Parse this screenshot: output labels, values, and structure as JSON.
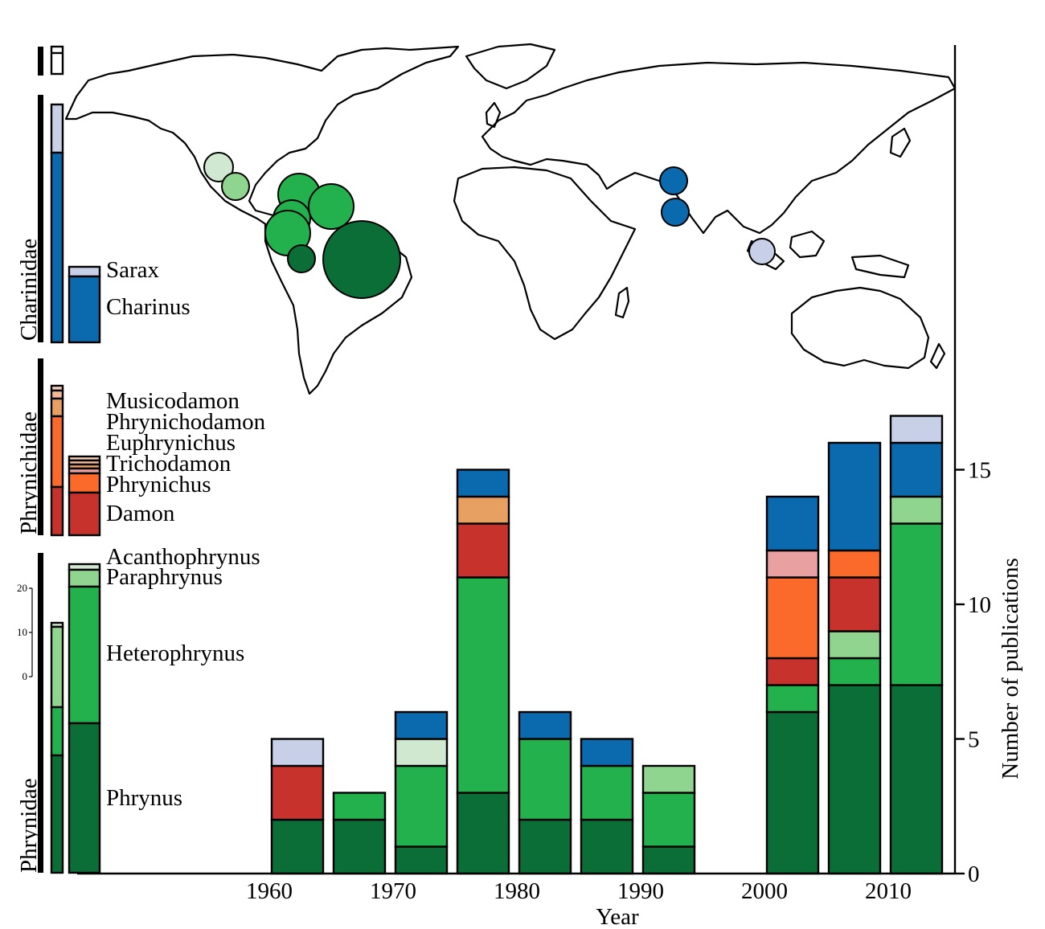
{
  "colors": {
    "Sarax": "#c8d0e8",
    "Charinus": "#0a6aad",
    "Musicodamon": "#f7cfb8",
    "Phrynichodamon": "#f3b895",
    "Euphrynichus": "#e8a062",
    "Trichodamon": "#e8a0a0",
    "Phrynichus": "#fb6a2a",
    "Damon": "#c8322c",
    "Acanthophrynus": "#cfe8cf",
    "Paraphrynus": "#8fd48f",
    "Heterophrynus": "#22b14c",
    "Phrynus": "#0b6e37"
  },
  "families": [
    {
      "name": "Charinidae",
      "genera": [
        "Sarax",
        "Charinus"
      ]
    },
    {
      "name": "Phrynichidae",
      "genera": [
        "Musicodamon",
        "Phrynichodamon",
        "Euphrynichus",
        "Trichodamon",
        "Phrynichus",
        "Damon"
      ]
    },
    {
      "name": "Phrynidae",
      "genera": [
        "Acanthophrynus",
        "Paraphrynus",
        "Heterophrynus",
        "Phrynus"
      ]
    }
  ],
  "legend_scale_ticks": [
    "20",
    "10",
    "0"
  ],
  "chart_data": {
    "type": "bar",
    "stacked": true,
    "xlabel": "Year",
    "ylabel": "Number of publications",
    "ylim": [
      0,
      18.5
    ],
    "yticks": [
      0,
      5,
      10,
      15
    ],
    "xticks": [
      "1960",
      "1970",
      "1980",
      "1990",
      "2000",
      "2010"
    ],
    "bins": [
      {
        "start": 1960,
        "Phrynus": 2,
        "Damon": 2,
        "Sarax": 1
      },
      {
        "start": 1965,
        "Phrynus": 2,
        "Heterophrynus": 1
      },
      {
        "start": 1970,
        "Phrynus": 1,
        "Heterophrynus": 3,
        "Acanthophrynus": 1,
        "Charinus": 1
      },
      {
        "start": 1975,
        "Phrynus": 3,
        "Heterophrynus": 8,
        "Damon": 2,
        "Euphrynichus": 1,
        "Charinus": 1
      },
      {
        "start": 1980,
        "Phrynus": 2,
        "Heterophrynus": 3,
        "Charinus": 1
      },
      {
        "start": 1985,
        "Phrynus": 2,
        "Heterophrynus": 2,
        "Charinus": 1
      },
      {
        "start": 1990,
        "Phrynus": 1,
        "Heterophrynus": 2,
        "Paraphrynus": 1
      },
      {
        "start": 2000,
        "Phrynus": 6,
        "Heterophrynus": 1,
        "Damon": 1,
        "Phrynichus": 3,
        "Trichodamon": 1,
        "Charinus": 2
      },
      {
        "start": 2005,
        "Phrynus": 7,
        "Heterophrynus": 1,
        "Paraphrynus": 1,
        "Damon": 2,
        "Phrynichus": 1,
        "Charinus": 4
      },
      {
        "start": 2010,
        "Phrynus": 7,
        "Heterophrynus": 6,
        "Paraphrynus": 1,
        "Charinus": 2,
        "Sarax": 1
      }
    ],
    "stack_order": [
      "Phrynus",
      "Heterophrynus",
      "Paraphrynus",
      "Acanthophrynus",
      "Damon",
      "Phrynichus",
      "Trichodamon",
      "Euphrynichus",
      "Phrynichodamon",
      "Musicodamon",
      "Charinus",
      "Sarax"
    ]
  },
  "map_bubbles": [
    {
      "region": "Mexico north",
      "genus": "Acanthophrynus"
    },
    {
      "region": "Mexico south",
      "genus": "Paraphrynus"
    },
    {
      "region": "Caribbean",
      "genus": "Heterophrynus"
    },
    {
      "region": "Caribbean east",
      "genus": "Heterophrynus"
    },
    {
      "region": "Central America",
      "genus": "Heterophrynus"
    },
    {
      "region": "Colombia",
      "genus": "Heterophrynus"
    },
    {
      "region": "Ecuador",
      "genus": "Phrynus"
    },
    {
      "region": "Amazon",
      "genus": "Phrynus"
    },
    {
      "region": "Arabia",
      "genus": "Charinus"
    },
    {
      "region": "India",
      "genus": "Charinus"
    },
    {
      "region": "Southeast Asia",
      "genus": "Sarax"
    }
  ]
}
